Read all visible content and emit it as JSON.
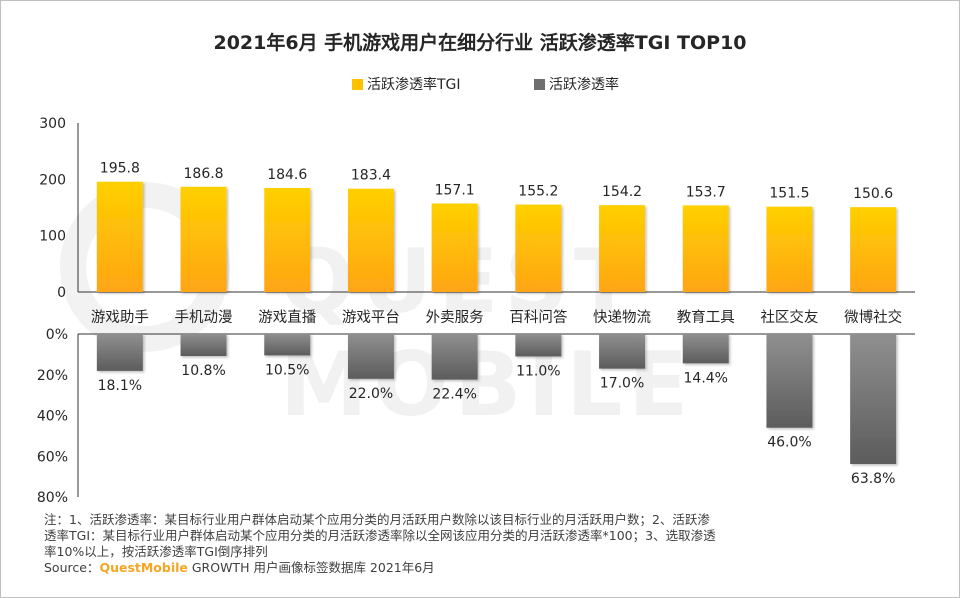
{
  "title": "2021年6月 手机游戏用户在细分行业 活跃渗透率TGI TOP10",
  "legend": {
    "tgi_label": "活跃渗透率TGI",
    "rate_label": "活跃渗透率"
  },
  "colors": {
    "tgi_top": "#ffd000",
    "tgi_bottom": "#ffa514",
    "rate_top": "#888888",
    "rate_bottom": "#5f5f5f",
    "text": "#262626",
    "axis": "#333333",
    "brand": "#f5a623"
  },
  "notes": {
    "line1": "注：1、活跃渗透率：某目标行业用户群体启动某个应用分类的月活跃用户数除以该目标行业的月活跃用户数；2、活跃渗",
    "line2": "透率TGI：某目标行业用户群体启动某个应用分类的月活跃渗透率除以全网该应用分类的月活跃渗透率*100；3、选取渗透",
    "line3": "率10%以上，按活跃渗透率TGI倒序排列",
    "source_prefix": "Source：",
    "source_brand": "QuestMobile",
    "source_suffix": " GROWTH 用户画像标签数据库 2021年6月"
  },
  "watermark": "QUEST MOBILE",
  "chart_data": [
    {
      "type": "bar",
      "categories": [
        "游戏助手",
        "手机动漫",
        "游戏直播",
        "游戏平台",
        "外卖服务",
        "百科问答",
        "快递物流",
        "教育工具",
        "社区交友",
        "微博社交"
      ],
      "series": [
        {
          "name": "活跃渗透率TGI",
          "values": [
            195.8,
            186.8,
            184.6,
            183.4,
            157.1,
            155.2,
            154.2,
            153.7,
            151.5,
            150.6
          ]
        }
      ],
      "data_labels": [
        "195.8",
        "186.8",
        "184.6",
        "183.4",
        "157.1",
        "155.2",
        "154.2",
        "153.7",
        "151.5",
        "150.6"
      ],
      "ylim": [
        0,
        300
      ],
      "yticks": [
        "0",
        "100",
        "200",
        "300"
      ]
    },
    {
      "type": "bar",
      "categories": [
        "游戏助手",
        "手机动漫",
        "游戏直播",
        "游戏平台",
        "外卖服务",
        "百科问答",
        "快递物流",
        "教育工具",
        "社区交友",
        "微博社交"
      ],
      "series": [
        {
          "name": "活跃渗透率",
          "values": [
            18.1,
            10.8,
            10.5,
            22.0,
            22.4,
            11.0,
            17.0,
            14.4,
            46.0,
            63.8
          ]
        }
      ],
      "data_labels": [
        "18.1%",
        "10.8%",
        "10.5%",
        "22.0%",
        "22.4%",
        "11.0%",
        "17.0%",
        "14.4%",
        "46.0%",
        "63.8%"
      ],
      "ylim": [
        0,
        80
      ],
      "yticks": [
        "0%",
        "20%",
        "40%",
        "60%",
        "80%"
      ],
      "inverted": true
    }
  ]
}
